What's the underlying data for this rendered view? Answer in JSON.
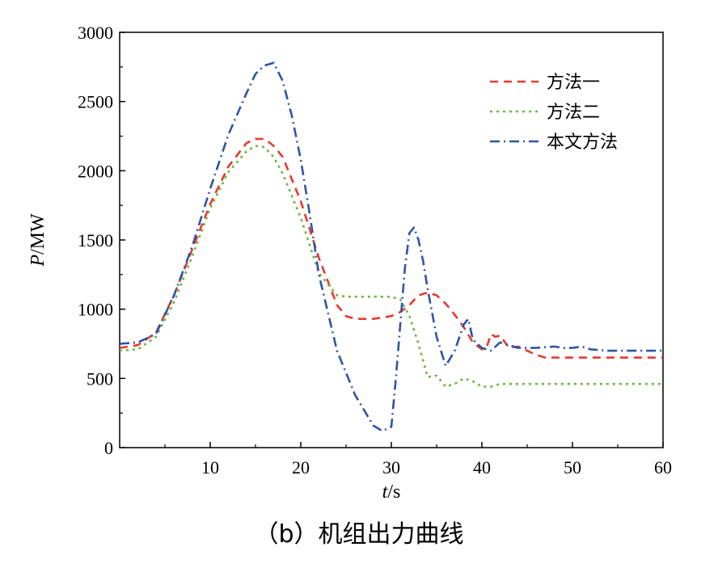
{
  "caption": "（b）机组出力曲线",
  "chart_data": {
    "type": "line",
    "xlabel": "t/s",
    "ylabel": "P/MW",
    "xlim": [
      0,
      60
    ],
    "ylim": [
      0,
      3000
    ],
    "xticks": [
      10,
      20,
      30,
      40,
      50,
      60
    ],
    "yticks": [
      0,
      500,
      1000,
      1500,
      2000,
      2500,
      3000
    ],
    "grid": false,
    "legend_position": "top-right",
    "series": [
      {
        "name": "方法一",
        "color": "#e8392e",
        "dash": "dashed",
        "x": [
          0,
          2,
          4,
          6,
          8,
          10,
          12,
          14,
          15,
          16,
          17,
          18,
          20,
          22,
          24,
          25,
          26,
          28,
          30,
          31,
          32,
          33,
          34,
          35,
          36,
          37,
          38,
          39,
          40,
          40.5,
          41,
          41.5,
          42,
          43,
          44,
          45,
          46,
          47,
          48,
          50,
          52,
          54,
          56,
          58,
          60
        ],
        "y": [
          720,
          740,
          830,
          1100,
          1430,
          1760,
          2030,
          2200,
          2230,
          2230,
          2180,
          2100,
          1780,
          1370,
          1030,
          950,
          930,
          930,
          950,
          980,
          1030,
          1100,
          1120,
          1100,
          1040,
          960,
          870,
          760,
          710,
          720,
          820,
          800,
          810,
          720,
          730,
          700,
          670,
          650,
          650,
          650,
          650,
          650,
          650,
          650,
          650
        ]
      },
      {
        "name": "方法二",
        "color": "#6db540",
        "dash": "dotted",
        "x": [
          0,
          2,
          4,
          6,
          8,
          10,
          12,
          14,
          15,
          16,
          17,
          18,
          20,
          22,
          24,
          25,
          26,
          27,
          28,
          29,
          30,
          31,
          32,
          33,
          34,
          35,
          36,
          37,
          38,
          39,
          40,
          41,
          42,
          44,
          46,
          50,
          55,
          60
        ],
        "y": [
          700,
          710,
          800,
          1050,
          1380,
          1730,
          1990,
          2140,
          2180,
          2170,
          2100,
          1980,
          1660,
          1260,
          1100,
          1090,
          1090,
          1090,
          1090,
          1090,
          1090,
          1070,
          950,
          750,
          510,
          520,
          440,
          460,
          500,
          480,
          440,
          440,
          460,
          460,
          460,
          460,
          460,
          460
        ]
      },
      {
        "name": "本文方法",
        "color": "#2e55a6",
        "dash": "dashdot",
        "x": [
          0,
          2,
          4,
          6,
          8,
          10,
          12,
          14,
          15,
          16,
          17,
          18,
          19,
          20,
          21,
          22,
          24,
          26,
          28,
          29,
          30,
          30.5,
          31,
          31.5,
          32,
          32.5,
          33,
          33.5,
          34,
          35,
          36,
          37,
          38,
          38.5,
          39,
          40,
          41,
          42,
          43,
          44,
          46,
          48,
          49,
          50,
          51,
          52,
          54,
          56,
          58,
          60
        ],
        "y": [
          750,
          760,
          820,
          1100,
          1450,
          1870,
          2260,
          2560,
          2700,
          2760,
          2780,
          2650,
          2400,
          2080,
          1680,
          1250,
          700,
          380,
          160,
          120,
          150,
          500,
          900,
          1300,
          1550,
          1590,
          1500,
          1350,
          1150,
          800,
          590,
          700,
          890,
          930,
          780,
          720,
          700,
          760,
          740,
          720,
          720,
          730,
          720,
          720,
          730,
          710,
          700,
          700,
          700,
          700
        ]
      }
    ]
  }
}
